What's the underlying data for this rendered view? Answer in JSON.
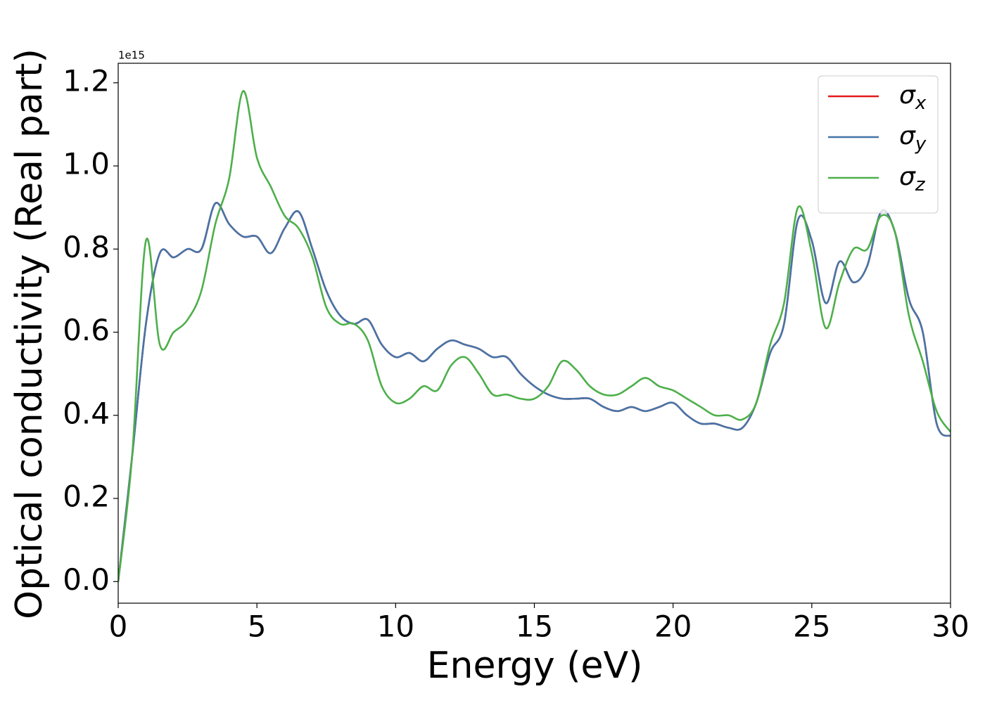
{
  "chart_data": {
    "type": "line",
    "x_label": "Energy (eV)",
    "y_label": "Optical conductivity (Real part)",
    "y_offset_text": "1e15",
    "x": [
      0,
      0.5,
      1,
      1.5,
      2,
      2.5,
      3,
      3.5,
      4,
      4.5,
      5,
      5.5,
      6,
      6.5,
      7,
      7.5,
      8,
      8.5,
      9,
      9.5,
      10,
      10.5,
      11,
      11.5,
      12,
      12.5,
      13,
      13.5,
      14,
      14.5,
      15,
      15.5,
      16,
      16.5,
      17,
      17.5,
      18,
      18.5,
      19,
      19.5,
      20,
      20.5,
      21,
      21.5,
      22,
      22.5,
      23,
      23.5,
      24,
      24.5,
      25,
      25.5,
      26,
      26.5,
      27,
      27.5,
      28,
      28.5,
      29,
      29.5,
      30
    ],
    "series": [
      {
        "name": "σx",
        "color": "#e41a1c",
        "values": [
          0,
          0.3,
          0.62,
          0.79,
          0.78,
          0.8,
          0.8,
          0.91,
          0.86,
          0.83,
          0.83,
          0.79,
          0.85,
          0.89,
          0.8,
          0.7,
          0.64,
          0.62,
          0.63,
          0.57,
          0.54,
          0.55,
          0.53,
          0.56,
          0.58,
          0.57,
          0.56,
          0.54,
          0.54,
          0.5,
          0.47,
          0.45,
          0.44,
          0.44,
          0.44,
          0.42,
          0.41,
          0.42,
          0.41,
          0.42,
          0.43,
          0.4,
          0.38,
          0.38,
          0.37,
          0.37,
          0.43,
          0.55,
          0.62,
          0.87,
          0.82,
          0.67,
          0.77,
          0.72,
          0.76,
          0.89,
          0.84,
          0.68,
          0.6,
          0.38,
          0.35
        ]
      },
      {
        "name": "σy",
        "color": "#4575a8",
        "values": [
          0,
          0.3,
          0.62,
          0.79,
          0.78,
          0.8,
          0.8,
          0.91,
          0.86,
          0.83,
          0.83,
          0.79,
          0.85,
          0.89,
          0.8,
          0.7,
          0.64,
          0.62,
          0.63,
          0.57,
          0.54,
          0.55,
          0.53,
          0.56,
          0.58,
          0.57,
          0.56,
          0.54,
          0.54,
          0.5,
          0.47,
          0.45,
          0.44,
          0.44,
          0.44,
          0.42,
          0.41,
          0.42,
          0.41,
          0.42,
          0.43,
          0.4,
          0.38,
          0.38,
          0.37,
          0.37,
          0.43,
          0.55,
          0.62,
          0.87,
          0.82,
          0.67,
          0.77,
          0.72,
          0.76,
          0.89,
          0.84,
          0.68,
          0.6,
          0.38,
          0.35
        ]
      },
      {
        "name": "σz",
        "color": "#4daf4a",
        "values": [
          0,
          0.3,
          0.82,
          0.57,
          0.6,
          0.63,
          0.7,
          0.86,
          0.97,
          1.18,
          1.02,
          0.95,
          0.88,
          0.85,
          0.78,
          0.66,
          0.62,
          0.62,
          0.58,
          0.47,
          0.43,
          0.44,
          0.47,
          0.46,
          0.52,
          0.54,
          0.5,
          0.45,
          0.45,
          0.44,
          0.44,
          0.47,
          0.53,
          0.51,
          0.47,
          0.45,
          0.45,
          0.47,
          0.49,
          0.47,
          0.46,
          0.44,
          0.42,
          0.4,
          0.4,
          0.39,
          0.43,
          0.57,
          0.67,
          0.9,
          0.79,
          0.61,
          0.72,
          0.8,
          0.8,
          0.88,
          0.84,
          0.64,
          0.53,
          0.41,
          0.36
        ]
      }
    ],
    "xlim": [
      0,
      30
    ],
    "xticks": [
      0,
      5,
      10,
      15,
      20,
      25,
      30
    ],
    "ylim": [
      -0.052,
      1.247
    ],
    "yticks": [
      {
        "value": 0,
        "label": "0.0"
      },
      0.2,
      0.4,
      0.6,
      0.8,
      {
        "value": 1,
        "label": "1.0"
      },
      1.2
    ],
    "legend": "upper right",
    "grid": false
  }
}
